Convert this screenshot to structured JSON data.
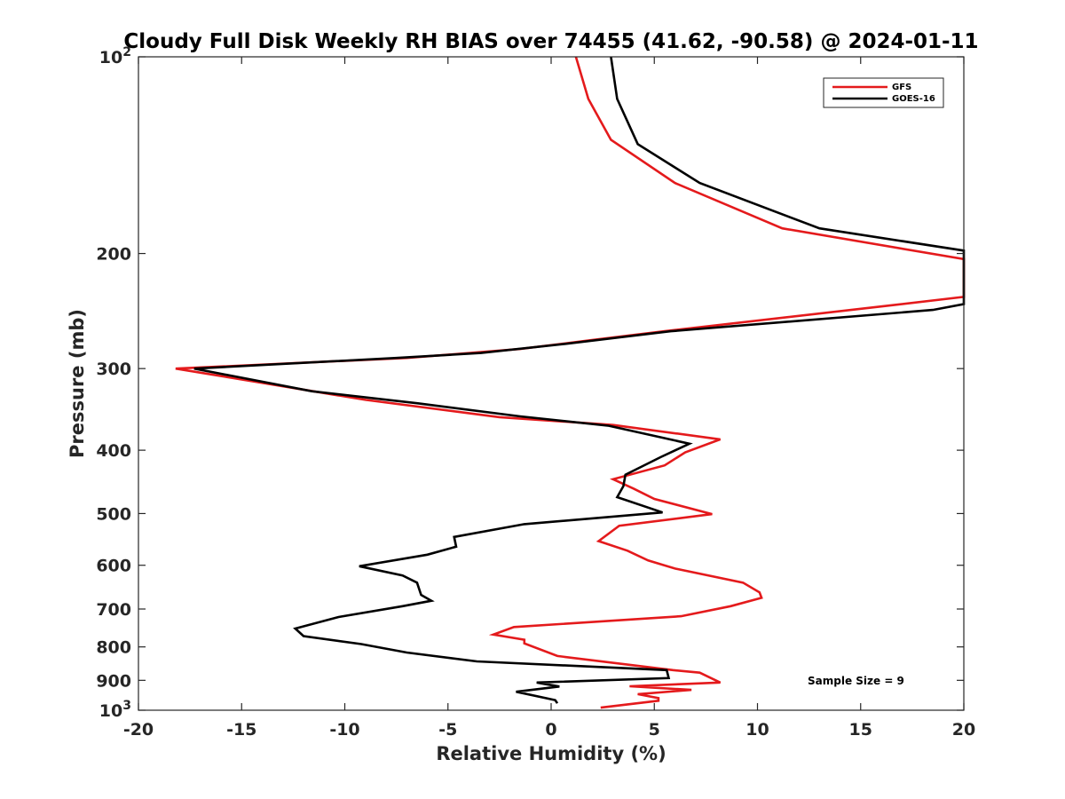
{
  "chart_data": {
    "type": "line",
    "title": "Cloudy Full Disk Weekly RH BIAS over 74455 (41.62, -90.58) @ 2024-01-11",
    "xlabel": "Relative Humidity (%)",
    "ylabel": "Pressure (mb)",
    "xlim": [
      -20,
      20
    ],
    "ylim": [
      100,
      1000
    ],
    "y_scale": "log",
    "y_reversed": true,
    "grid": false,
    "legend_position": "top-right",
    "x_ticks": [
      "-20",
      "-15",
      "-10",
      "-5",
      "0",
      "5",
      "10",
      "15",
      "20"
    ],
    "y_ticks": [
      {
        "value": 100,
        "base": "10",
        "exp": "2"
      },
      {
        "value": 200,
        "label": "200"
      },
      {
        "value": 300,
        "label": "300"
      },
      {
        "value": 400,
        "label": "400"
      },
      {
        "value": 500,
        "label": "500"
      },
      {
        "value": 600,
        "label": "600"
      },
      {
        "value": 700,
        "label": "700"
      },
      {
        "value": 800,
        "label": "800"
      },
      {
        "value": 900,
        "label": "900"
      },
      {
        "value": 1000,
        "base": "10",
        "exp": "3"
      }
    ],
    "annotation": "Sample Size = 9",
    "series": [
      {
        "name": "GFS",
        "color": "#e41a1c",
        "points": [
          [
            1.2,
            100
          ],
          [
            1.8,
            116
          ],
          [
            2.9,
            134
          ],
          [
            6.0,
            156
          ],
          [
            11.2,
            183
          ],
          [
            20,
            204
          ],
          [
            20,
            233
          ],
          [
            16.0,
            241
          ],
          [
            5.5,
            263
          ],
          [
            2.5,
            270
          ],
          [
            -1.5,
            280
          ],
          [
            -7.0,
            289
          ],
          [
            -18.2,
            300
          ],
          [
            -9.0,
            335
          ],
          [
            -2.5,
            356
          ],
          [
            3.0,
            366
          ],
          [
            8.2,
            385
          ],
          [
            6.5,
            403
          ],
          [
            5.5,
            422
          ],
          [
            3.0,
            443
          ],
          [
            4.0,
            458
          ],
          [
            5.0,
            475
          ],
          [
            7.8,
            501
          ],
          [
            3.3,
            522
          ],
          [
            2.3,
            551
          ],
          [
            3.7,
            570
          ],
          [
            4.7,
            590
          ],
          [
            6.0,
            607
          ],
          [
            9.3,
            638
          ],
          [
            10.1,
            660
          ],
          [
            10.2,
            673
          ],
          [
            8.7,
            693
          ],
          [
            6.3,
            718
          ],
          [
            -1.8,
            746
          ],
          [
            -2.8,
            766
          ],
          [
            -1.3,
            780
          ],
          [
            -1.3,
            790
          ],
          [
            0.3,
            826
          ],
          [
            5.9,
            868
          ],
          [
            7.2,
            876
          ],
          [
            8.2,
            907
          ],
          [
            3.8,
            919
          ],
          [
            6.8,
            931
          ],
          [
            4.2,
            945
          ],
          [
            5.2,
            958
          ],
          [
            5.2,
            967
          ],
          [
            2.4,
            991
          ]
        ]
      },
      {
        "name": "GOES-16",
        "color": "#000000",
        "points": [
          [
            2.9,
            100
          ],
          [
            3.2,
            116
          ],
          [
            4.2,
            136
          ],
          [
            7.2,
            156
          ],
          [
            13.0,
            183
          ],
          [
            20,
            198
          ],
          [
            20,
            239
          ],
          [
            18.5,
            244
          ],
          [
            5.8,
            263
          ],
          [
            0.7,
            275
          ],
          [
            -3.4,
            284
          ],
          [
            -7.5,
            289
          ],
          [
            -17.3,
            300
          ],
          [
            -11.6,
            325
          ],
          [
            -6.5,
            339
          ],
          [
            -1.5,
            355
          ],
          [
            2.8,
            367
          ],
          [
            6.7,
            391
          ],
          [
            5.3,
            410
          ],
          [
            3.6,
            436
          ],
          [
            3.5,
            454
          ],
          [
            3.2,
            472
          ],
          [
            5.4,
            498
          ],
          [
            -1.3,
            519
          ],
          [
            -4.7,
            543
          ],
          [
            -4.6,
            562
          ],
          [
            -6.0,
            578
          ],
          [
            -9.3,
            602
          ],
          [
            -7.2,
            622
          ],
          [
            -6.5,
            638
          ],
          [
            -6.3,
            666
          ],
          [
            -5.8,
            680
          ],
          [
            -7.2,
            693
          ],
          [
            -10.3,
            720
          ],
          [
            -12.4,
            750
          ],
          [
            -12.0,
            770
          ],
          [
            -9.2,
            792
          ],
          [
            -7.0,
            816
          ],
          [
            -3.6,
            842
          ],
          [
            5.6,
            868
          ],
          [
            5.7,
            893
          ],
          [
            -0.7,
            907
          ],
          [
            0.4,
            920
          ],
          [
            -1.7,
            937
          ],
          [
            0.2,
            965
          ],
          [
            0.3,
            976
          ]
        ]
      }
    ]
  }
}
